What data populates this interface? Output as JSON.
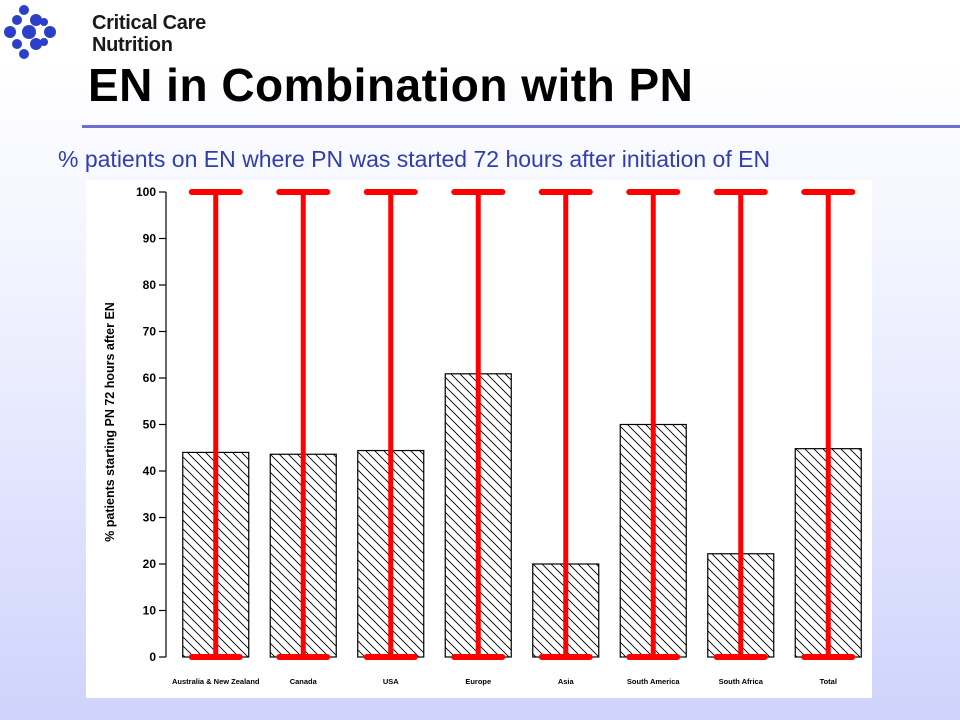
{
  "logo": {
    "line1": "Critical Care",
    "line2": "Nutrition",
    "mark_color": "#2c3fc8"
  },
  "slide": {
    "title": "EN in Combination with PN",
    "subtitle": "% patients on EN where PN was started 72 hours after initiation of EN"
  },
  "colors": {
    "error_bar": "#ff0000",
    "bar_outline": "#000000",
    "accent": "#2f3db0"
  },
  "chart_data": {
    "type": "bar",
    "title": "",
    "xlabel": "",
    "ylabel": "% patients starting PN 72 hours after EN",
    "ylim": [
      0,
      100
    ],
    "yticks": [
      0,
      10,
      20,
      30,
      40,
      50,
      60,
      70,
      80,
      90,
      100
    ],
    "categories": [
      "Australia & New Zealand",
      "Canada",
      "USA",
      "Europe",
      "Asia",
      "South America",
      "South Africa",
      "Total"
    ],
    "values": [
      44,
      43.6,
      44.4,
      60.9,
      20,
      50,
      22.2,
      44.8
    ],
    "error_low": [
      0,
      0,
      0,
      0,
      0,
      0,
      0,
      0
    ],
    "error_high": [
      100,
      100,
      100,
      100,
      100,
      100,
      100,
      100
    ],
    "bar_fill": "diagonal-hatch",
    "grid": false
  }
}
